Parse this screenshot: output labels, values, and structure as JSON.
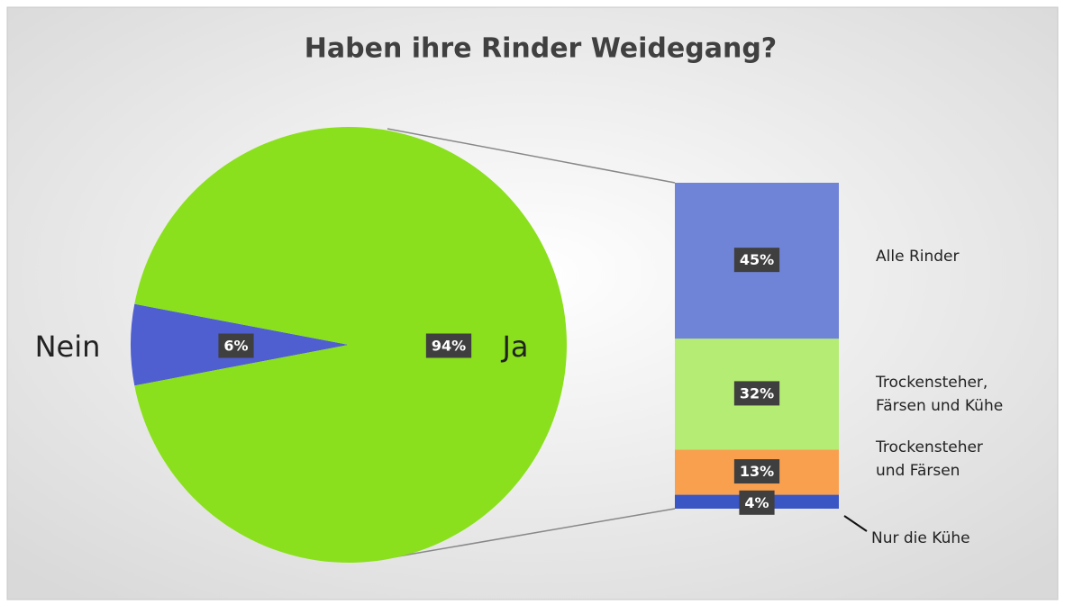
{
  "chart_data": {
    "type": "pie",
    "title": "Haben ihre Rinder Weidegang?",
    "categories": [
      "Nein",
      "Ja"
    ],
    "values": [
      6,
      94
    ],
    "value_labels": [
      "6%",
      "94%"
    ],
    "colors": [
      "#4f5fd0",
      "#8ae01c"
    ],
    "breakdown": {
      "type": "bar",
      "categories": [
        "Alle Rinder",
        "Trockensteher,\nFärsen und Kühe",
        "Trockensteher\nund Färsen",
        "Nur die Kühe"
      ],
      "values": [
        45,
        32,
        13,
        4
      ],
      "value_labels": [
        "45%",
        "32%",
        "13%",
        "4%"
      ],
      "colors": [
        "#6f84d6",
        "#b5ec73",
        "#f9a04f",
        "#3a55c4"
      ]
    }
  }
}
